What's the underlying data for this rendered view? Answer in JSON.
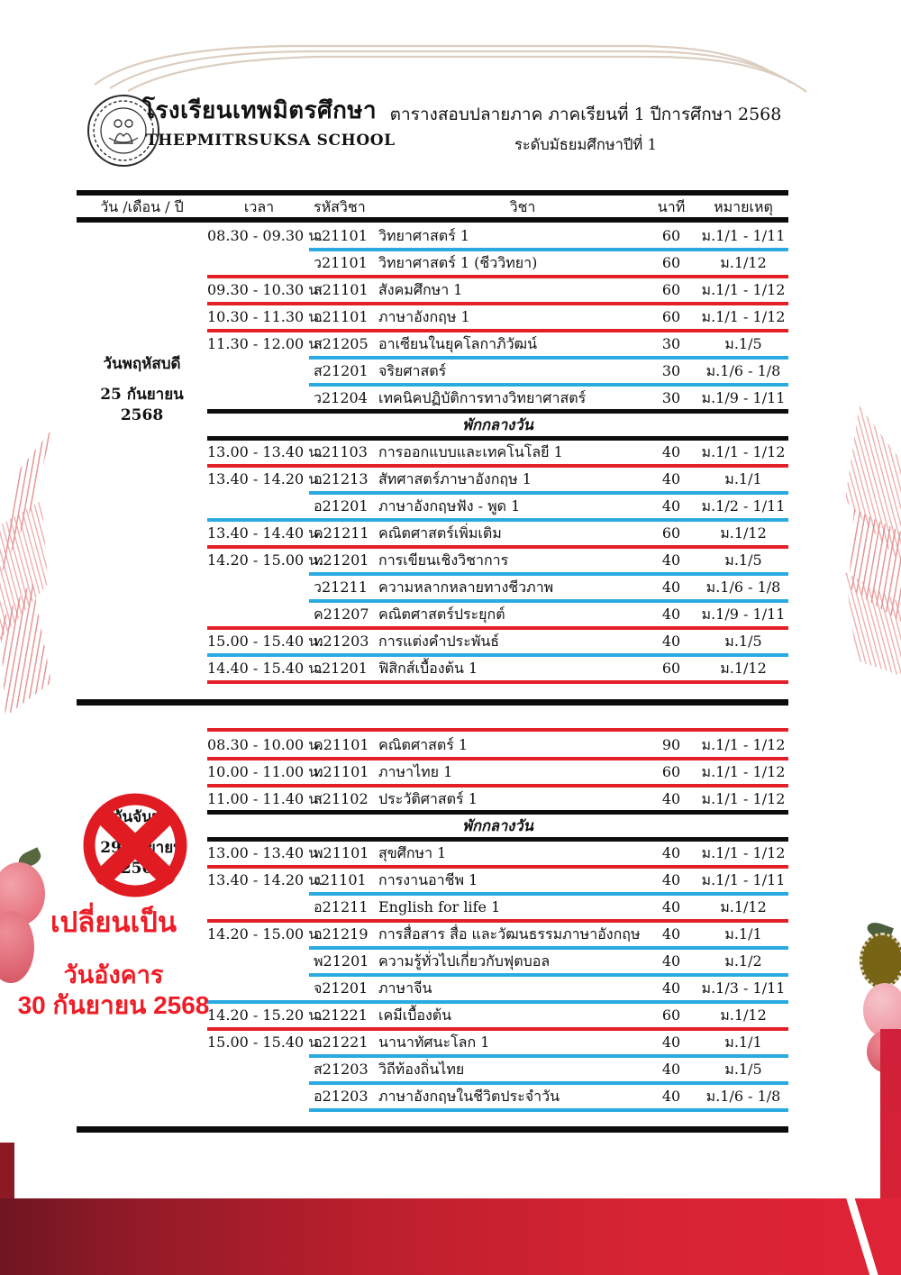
{
  "header": {
    "school_name_th": "โรงเรียนเทพมิตรศึกษา",
    "school_name_en": "THEPMITRSUKSA SCHOOL",
    "title_line1": "ตารางสอบปลายภาค ภาคเรียนที่ 1   ปีการศึกษา 2568",
    "title_line2": "ระดับมัธยมศึกษาปีที่ 1"
  },
  "table": {
    "columns": [
      "วัน /เดือน / ปี",
      "เวลา",
      "รหัสวิชา",
      "วิชา",
      "นาที",
      "หมายเหตุ"
    ],
    "lunch_label": "พักกลางวัน",
    "sections": [
      {
        "day": "วันพฤหัสบดี",
        "date": "25 กันยายน 2568",
        "cancelled": false,
        "rows": [
          {
            "time": "08.30 - 09.30 น.",
            "code": "ว21101",
            "subject": "วิทยาศาสตร์ 1",
            "minutes": "60",
            "note": "ม.1/1 - 1/11",
            "sep": "blue"
          },
          {
            "time": "",
            "code": "ว21101",
            "subject": "วิทยาศาสตร์ 1 (ชีววิทยา)",
            "minutes": "60",
            "note": "ม.1/12",
            "sep": "red"
          },
          {
            "time": "09.30 - 10.30 น.",
            "code": "ส21101",
            "subject": "สังคมศึกษา 1",
            "minutes": "60",
            "note": "ม.1/1 - 1/12",
            "sep": "red"
          },
          {
            "time": "10.30 - 11.30 น.",
            "code": "อ21101",
            "subject": "ภาษาอังกฤษ 1",
            "minutes": "60",
            "note": "ม.1/1 - 1/12",
            "sep": "red"
          },
          {
            "time": "11.30 - 12.00 น.",
            "code": "ส21205",
            "subject": "อาเซียนในยุคโลกาภิวัฒน์",
            "minutes": "30",
            "note": "ม.1/5",
            "sep": "blue"
          },
          {
            "time": "",
            "code": "ส21201",
            "subject": "จริยศาสตร์",
            "minutes": "30",
            "note": "ม.1/6 - 1/8",
            "sep": "blue"
          },
          {
            "time": "",
            "code": "ว21204",
            "subject": "เทคนิคปฏิบัติการทางวิทยาศาสตร์",
            "minutes": "30",
            "note": "ม.1/9 - 1/11",
            "sep": "black"
          },
          {
            "lunch": true
          },
          {
            "time": "13.00 - 13.40 น.",
            "code": "ว21103",
            "subject": "การออกแบบและเทคโนโลยี 1",
            "minutes": "40",
            "note": "ม.1/1 - 1/12",
            "sep": "red"
          },
          {
            "time": "13.40 - 14.20 น.",
            "code": "อ21213",
            "subject": "สัทศาสตร์ภาษาอังกฤษ 1",
            "minutes": "40",
            "note": "ม.1/1",
            "sep": "blue"
          },
          {
            "time": "",
            "code": "อ21201",
            "subject": "ภาษาอังกฤษฟัง - พูด 1",
            "minutes": "40",
            "note": "ม.1/2 - 1/11",
            "sep": "blueF"
          },
          {
            "time": "13.40 - 14.40 น.",
            "code": "ค21211",
            "subject": "คณิตศาสตร์เพิ่มเติม",
            "minutes": "60",
            "note": "ม.1/12",
            "sep": "red"
          },
          {
            "time": "14.20 - 15.00 น.",
            "code": "ท21201",
            "subject": "การเขียนเชิงวิชาการ",
            "minutes": "40",
            "note": "ม.1/5",
            "sep": "blue"
          },
          {
            "time": "",
            "code": "ว21211",
            "subject": "ความหลากหลายทางชีวภาพ",
            "minutes": "40",
            "note": "ม.1/6 - 1/8",
            "sep": "blue"
          },
          {
            "time": "",
            "code": "ค21207",
            "subject": "คณิตศาสตร์ประยุกต์",
            "minutes": "40",
            "note": "ม.1/9 - 1/11",
            "sep": "red"
          },
          {
            "time": "15.00 - 15.40 น.",
            "code": "ท21203",
            "subject": "การแต่งคำประพันธ์",
            "minutes": "40",
            "note": "ม.1/5",
            "sep": "blueF"
          },
          {
            "time": "14.40 - 15.40 น.",
            "code": "ว21201",
            "subject": "ฟิสิกส์เบื้องต้น 1",
            "minutes": "60",
            "note": "ม.1/12",
            "sep": "red"
          }
        ]
      },
      {
        "day": "วันจันทร์",
        "date": "29 กันยายน 2568",
        "cancelled": true,
        "rows": [
          {
            "time": "08.30 - 10.00 น.",
            "code": "ค21101",
            "subject": "คณิตศาสตร์ 1",
            "minutes": "90",
            "note": "ม.1/1 - 1/12",
            "sep": "red"
          },
          {
            "time": "10.00 - 11.00 น.",
            "code": "ท21101",
            "subject": "ภาษาไทย 1",
            "minutes": "60",
            "note": "ม.1/1 - 1/12",
            "sep": "red"
          },
          {
            "time": "11.00 - 11.40 น.",
            "code": "ส21102",
            "subject": "ประวัติศาสตร์ 1",
            "minutes": "40",
            "note": "ม.1/1 - 1/12",
            "sep": "black"
          },
          {
            "lunch": true
          },
          {
            "time": "13.00 - 13.40 น.",
            "code": "พ21101",
            "subject": "สุขศึกษา 1",
            "minutes": "40",
            "note": "ม.1/1 - 1/12",
            "sep": "red"
          },
          {
            "time": "13.40 - 14.20 น.",
            "code": "ง21101",
            "subject": "การงานอาชีพ 1",
            "minutes": "40",
            "note": "ม.1/1 - 1/11",
            "sep": "blue"
          },
          {
            "time": "",
            "code": "อ21211",
            "subject": "English for life 1",
            "minutes": "40",
            "note": "ม.1/12",
            "sep": "red"
          },
          {
            "time": "14.20 - 15.00 น.",
            "code": "อ21219",
            "subject": "การสื่อสาร สื่อ และวัฒนธรรมภาษาอังกฤษ",
            "minutes": "40",
            "note": "ม.1/1",
            "sep": "blue"
          },
          {
            "time": "",
            "code": "พ21201",
            "subject": "ความรู้ทั่วไปเกี่ยวกับฟุตบอล",
            "minutes": "40",
            "note": "ม.1/2",
            "sep": "blue"
          },
          {
            "time": "",
            "code": "จ21201",
            "subject": "ภาษาจีน",
            "minutes": "40",
            "note": "ม.1/3 - 1/11",
            "sep": "blueF"
          },
          {
            "time": "14.20 - 15.20 น.",
            "code": "ว21221",
            "subject": "เคมีเบื้องต้น",
            "minutes": "60",
            "note": "ม.1/12",
            "sep": "red"
          },
          {
            "time": "15.00 - 15.40 น.",
            "code": "อ21221",
            "subject": "นานาทัศนะโลก 1",
            "minutes": "40",
            "note": "ม.1/1",
            "sep": "blue"
          },
          {
            "time": "",
            "code": "ส21203",
            "subject": "วิถีท้องถิ่นไทย",
            "minutes": "40",
            "note": "ม.1/5",
            "sep": "blue"
          },
          {
            "time": "",
            "code": "อ21203",
            "subject": "ภาษาอังกฤษในชีวิตประจำวัน",
            "minutes": "40",
            "note": "ม.1/6 - 1/8",
            "sep": "blue"
          }
        ]
      }
    ]
  },
  "annotation": {
    "changed_to_label": "เปลี่ยนเป็น",
    "new_day": "วันอังคาร",
    "new_date": "30 กันยายน 2568"
  },
  "decorations": {
    "cancel_stamp_icon": "red-circle-x-stamp",
    "top_swirl": "beige-curved-lines",
    "side_florals": "pink-watercolor-petals"
  },
  "colors": {
    "line_red": "#e32028",
    "line_blue": "#29abe2",
    "line_black": "#0e0e0e",
    "stamp_red": "#e01b22",
    "change_text_red": "#ee1c25",
    "band_dark_red": "#701522",
    "band_bright_red": "#e02336"
  }
}
